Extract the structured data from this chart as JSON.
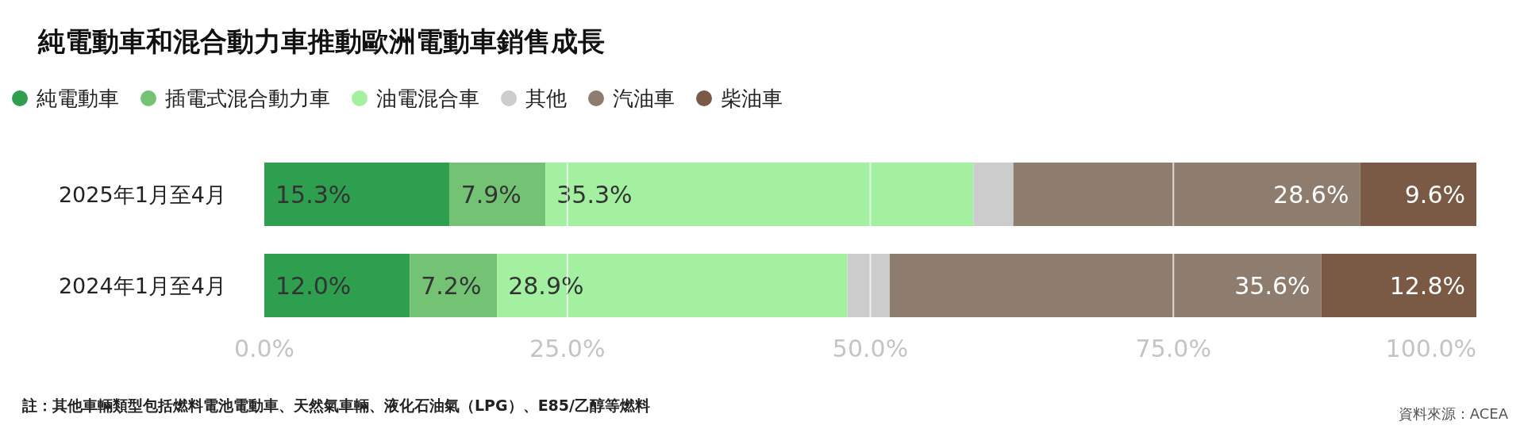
{
  "chart_data": {
    "type": "bar",
    "orientation": "horizontal",
    "stacked": true,
    "title": "純電動車和混合動力車推動歐洲電動車銷售成長",
    "categories": [
      "2025年1月至4月",
      "2024年1月至4月"
    ],
    "series": [
      {
        "name": "純電動車",
        "color": "#2e9e4f",
        "values": [
          15.3,
          12.0
        ],
        "value_labels": [
          "15.3%",
          "12.0%"
        ]
      },
      {
        "name": "插電式混合動力車",
        "color": "#74c274",
        "values": [
          7.9,
          7.2
        ],
        "value_labels": [
          "7.9%",
          "7.2%"
        ]
      },
      {
        "name": "油電混合車",
        "color": "#a3f0a0",
        "values": [
          35.3,
          28.9
        ],
        "value_labels": [
          "35.3%",
          "28.9%"
        ]
      },
      {
        "name": "其他",
        "color": "#cccccc",
        "values": [
          3.3,
          3.5
        ],
        "value_labels": [
          null,
          null
        ]
      },
      {
        "name": "汽油車",
        "color": "#8e7d6f",
        "values": [
          28.6,
          35.6
        ],
        "value_labels": [
          "28.6%",
          "35.6%"
        ]
      },
      {
        "name": "柴油車",
        "color": "#7a5a45",
        "values": [
          9.6,
          12.8
        ],
        "value_labels": [
          "9.6%",
          "12.8%"
        ]
      }
    ],
    "xlim": [
      0,
      100
    ],
    "xticks": [
      {
        "value": 0,
        "label": "0.0%"
      },
      {
        "value": 25,
        "label": "25.0%"
      },
      {
        "value": 50,
        "label": "50.0%"
      },
      {
        "value": 75,
        "label": "75.0%"
      },
      {
        "value": 100,
        "label": "100.0%"
      }
    ],
    "grid": "x",
    "legend": "top left",
    "annotations": [
      "註：其他車輛類型包括燃料電池電動車、天然氣車輛、液化石油氣（LPG）、E85/乙醇等燃料",
      "資料來源：ACEA"
    ]
  }
}
